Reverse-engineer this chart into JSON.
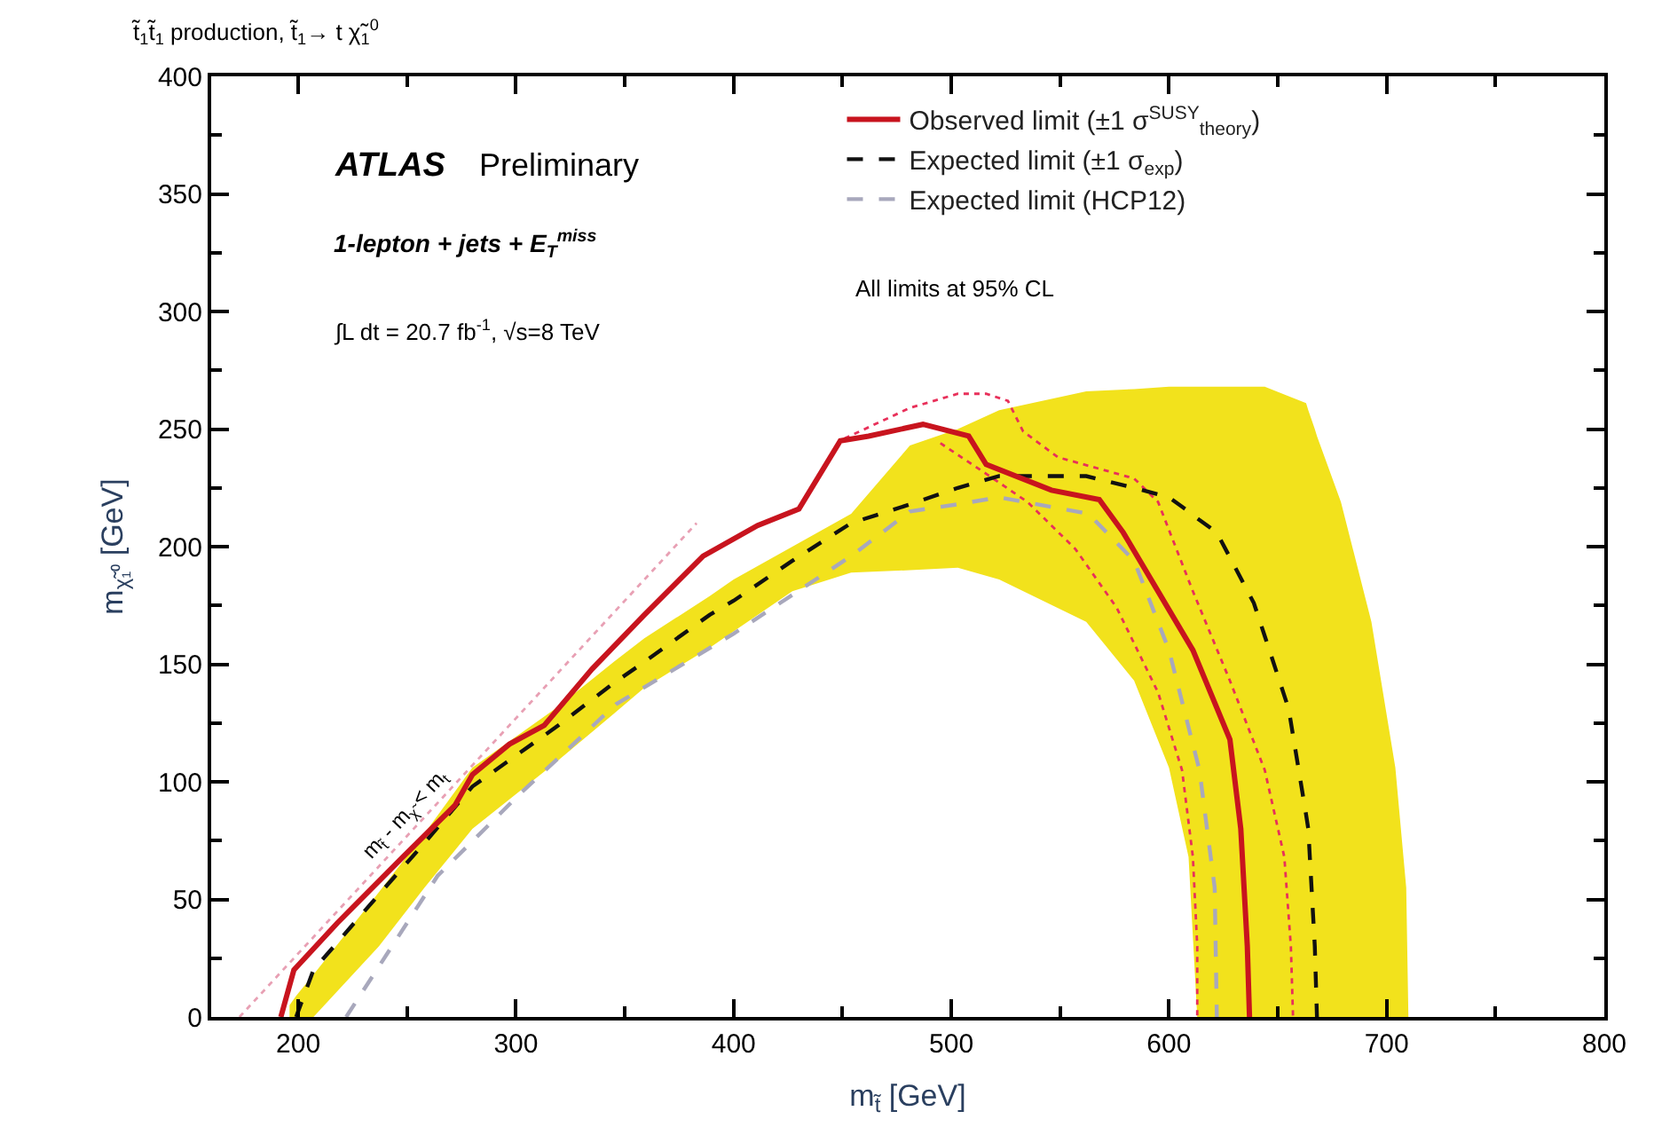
{
  "chart_data": {
    "type": "line",
    "title": "t̃$_{1}$t̃$_{1}$ production, t̃$_{1}$→ t χ̃$_{1}$$^{0}$",
    "xlabel": "m$_{t̃}$ [GeV]",
    "ylabel": "m$_{χ̃₁⁰}$ [GeV]",
    "xlim": [
      160,
      800
    ],
    "xticks": [
      200,
      300,
      400,
      500,
      600,
      700,
      800
    ],
    "ylim": [
      0,
      400
    ],
    "yticks": [
      0,
      50,
      100,
      150,
      200,
      250,
      300,
      350,
      400
    ],
    "legend": "top right",
    "marker": "none",
    "series": [
      {
        "color": "#e8a0b4",
        "line_style": "dotted",
        "x": [
          173,
          383
        ],
        "values": [
          0,
          210
        ]
      },
      {
        "name": "Expected limit (HCP12)",
        "color": "#a8a8bc",
        "line_style": "dashed",
        "x": [
          222,
          264,
          302,
          346,
          400,
          454,
          481,
          503,
          522,
          563,
          584,
          600,
          614,
          621,
          622
        ],
        "values": [
          0,
          60,
          95,
          133,
          163,
          196,
          215,
          218,
          221,
          214,
          194,
          156,
          105,
          55,
          0
        ]
      },
      {
        "color": "#e8305a",
        "line_style": "dotted",
        "x": [
          451,
          481,
          503,
          516,
          526,
          533,
          549,
          584,
          595,
          611,
          628,
          644,
          653,
          656,
          657
        ],
        "values": [
          246,
          259,
          265,
          265,
          262,
          249,
          238,
          229,
          219,
          181,
          143,
          105,
          68,
          30,
          0
        ]
      },
      {
        "color": "#e8305a",
        "line_style": "dotted",
        "x": [
          495,
          516,
          535,
          557,
          576,
          595,
          606,
          611,
          613,
          613
        ],
        "values": [
          244,
          231,
          219,
          199,
          174,
          138,
          105,
          68,
          30,
          0
        ]
      },
      {
        "name": "Expected limit (±1 σ$_{exp}$)",
        "color": "#111111",
        "line_style": "dashed",
        "x": [
          196,
          199,
          207,
          237,
          258,
          280,
          318,
          345,
          359,
          389,
          400,
          427,
          454,
          481,
          503,
          522,
          562,
          584,
          600,
          609,
          613,
          622,
          639,
          644,
          655,
          663,
          664,
          667,
          668,
          679,
          693,
          704,
          709,
          710
        ],
        "values": [
          null,
          0,
          20,
          52,
          74,
          98,
          123,
          142,
          151,
          171,
          177,
          194,
          210,
          218,
          225,
          230,
          230,
          225,
          221,
          215,
          212,
          206,
          176,
          162,
          131,
          86,
          80,
          30,
          0,
          null,
          null,
          null,
          null,
          null
        ],
        "upper": [
          5,
          9,
          18,
          53,
          78,
          106,
          131,
          151,
          161,
          179,
          186,
          200,
          214,
          243,
          250,
          258,
          266,
          267,
          268,
          268,
          268,
          268,
          268,
          268,
          264,
          261,
          258,
          250,
          247,
          219,
          168,
          106,
          55,
          0
        ],
        "lower": [
          0,
          0,
          0,
          30,
          55,
          80,
          108,
          129,
          140,
          157,
          164,
          181,
          189,
          190,
          191,
          186,
          168,
          143,
          106,
          68,
          0,
          0,
          0,
          0,
          0,
          0,
          0,
          0,
          0,
          0,
          0,
          0,
          0,
          0
        ]
      },
      {
        "name": "Observed limit (±1 σ$^{SUSY}$$_{theory}$)",
        "color": "#c8141e",
        "line_style": "solid",
        "x": [
          192,
          198,
          218,
          248,
          272,
          280,
          297,
          313,
          335,
          359,
          386,
          411,
          430,
          449,
          462,
          487,
          508,
          516,
          546,
          568,
          579,
          595,
          611,
          628,
          633,
          636,
          637
        ],
        "values": [
          0,
          20,
          40,
          68,
          90,
          103,
          116,
          124,
          148,
          171,
          196,
          209,
          216,
          245,
          247,
          252,
          247,
          235,
          224,
          220,
          206,
          181,
          156,
          118,
          80,
          30,
          0
        ]
      }
    ],
    "annotations": [
      "ATLAS",
      "Preliminary",
      "1-lepton + jets + E$_{T}$$^{miss}$",
      "∫L dt = 20.7 fb$^{-1}$, √s=8 TeV",
      "All limits at 95% CL",
      "m$_{t̃}$ - m$_{χ̃}$ < m$_{t}$"
    ]
  }
}
